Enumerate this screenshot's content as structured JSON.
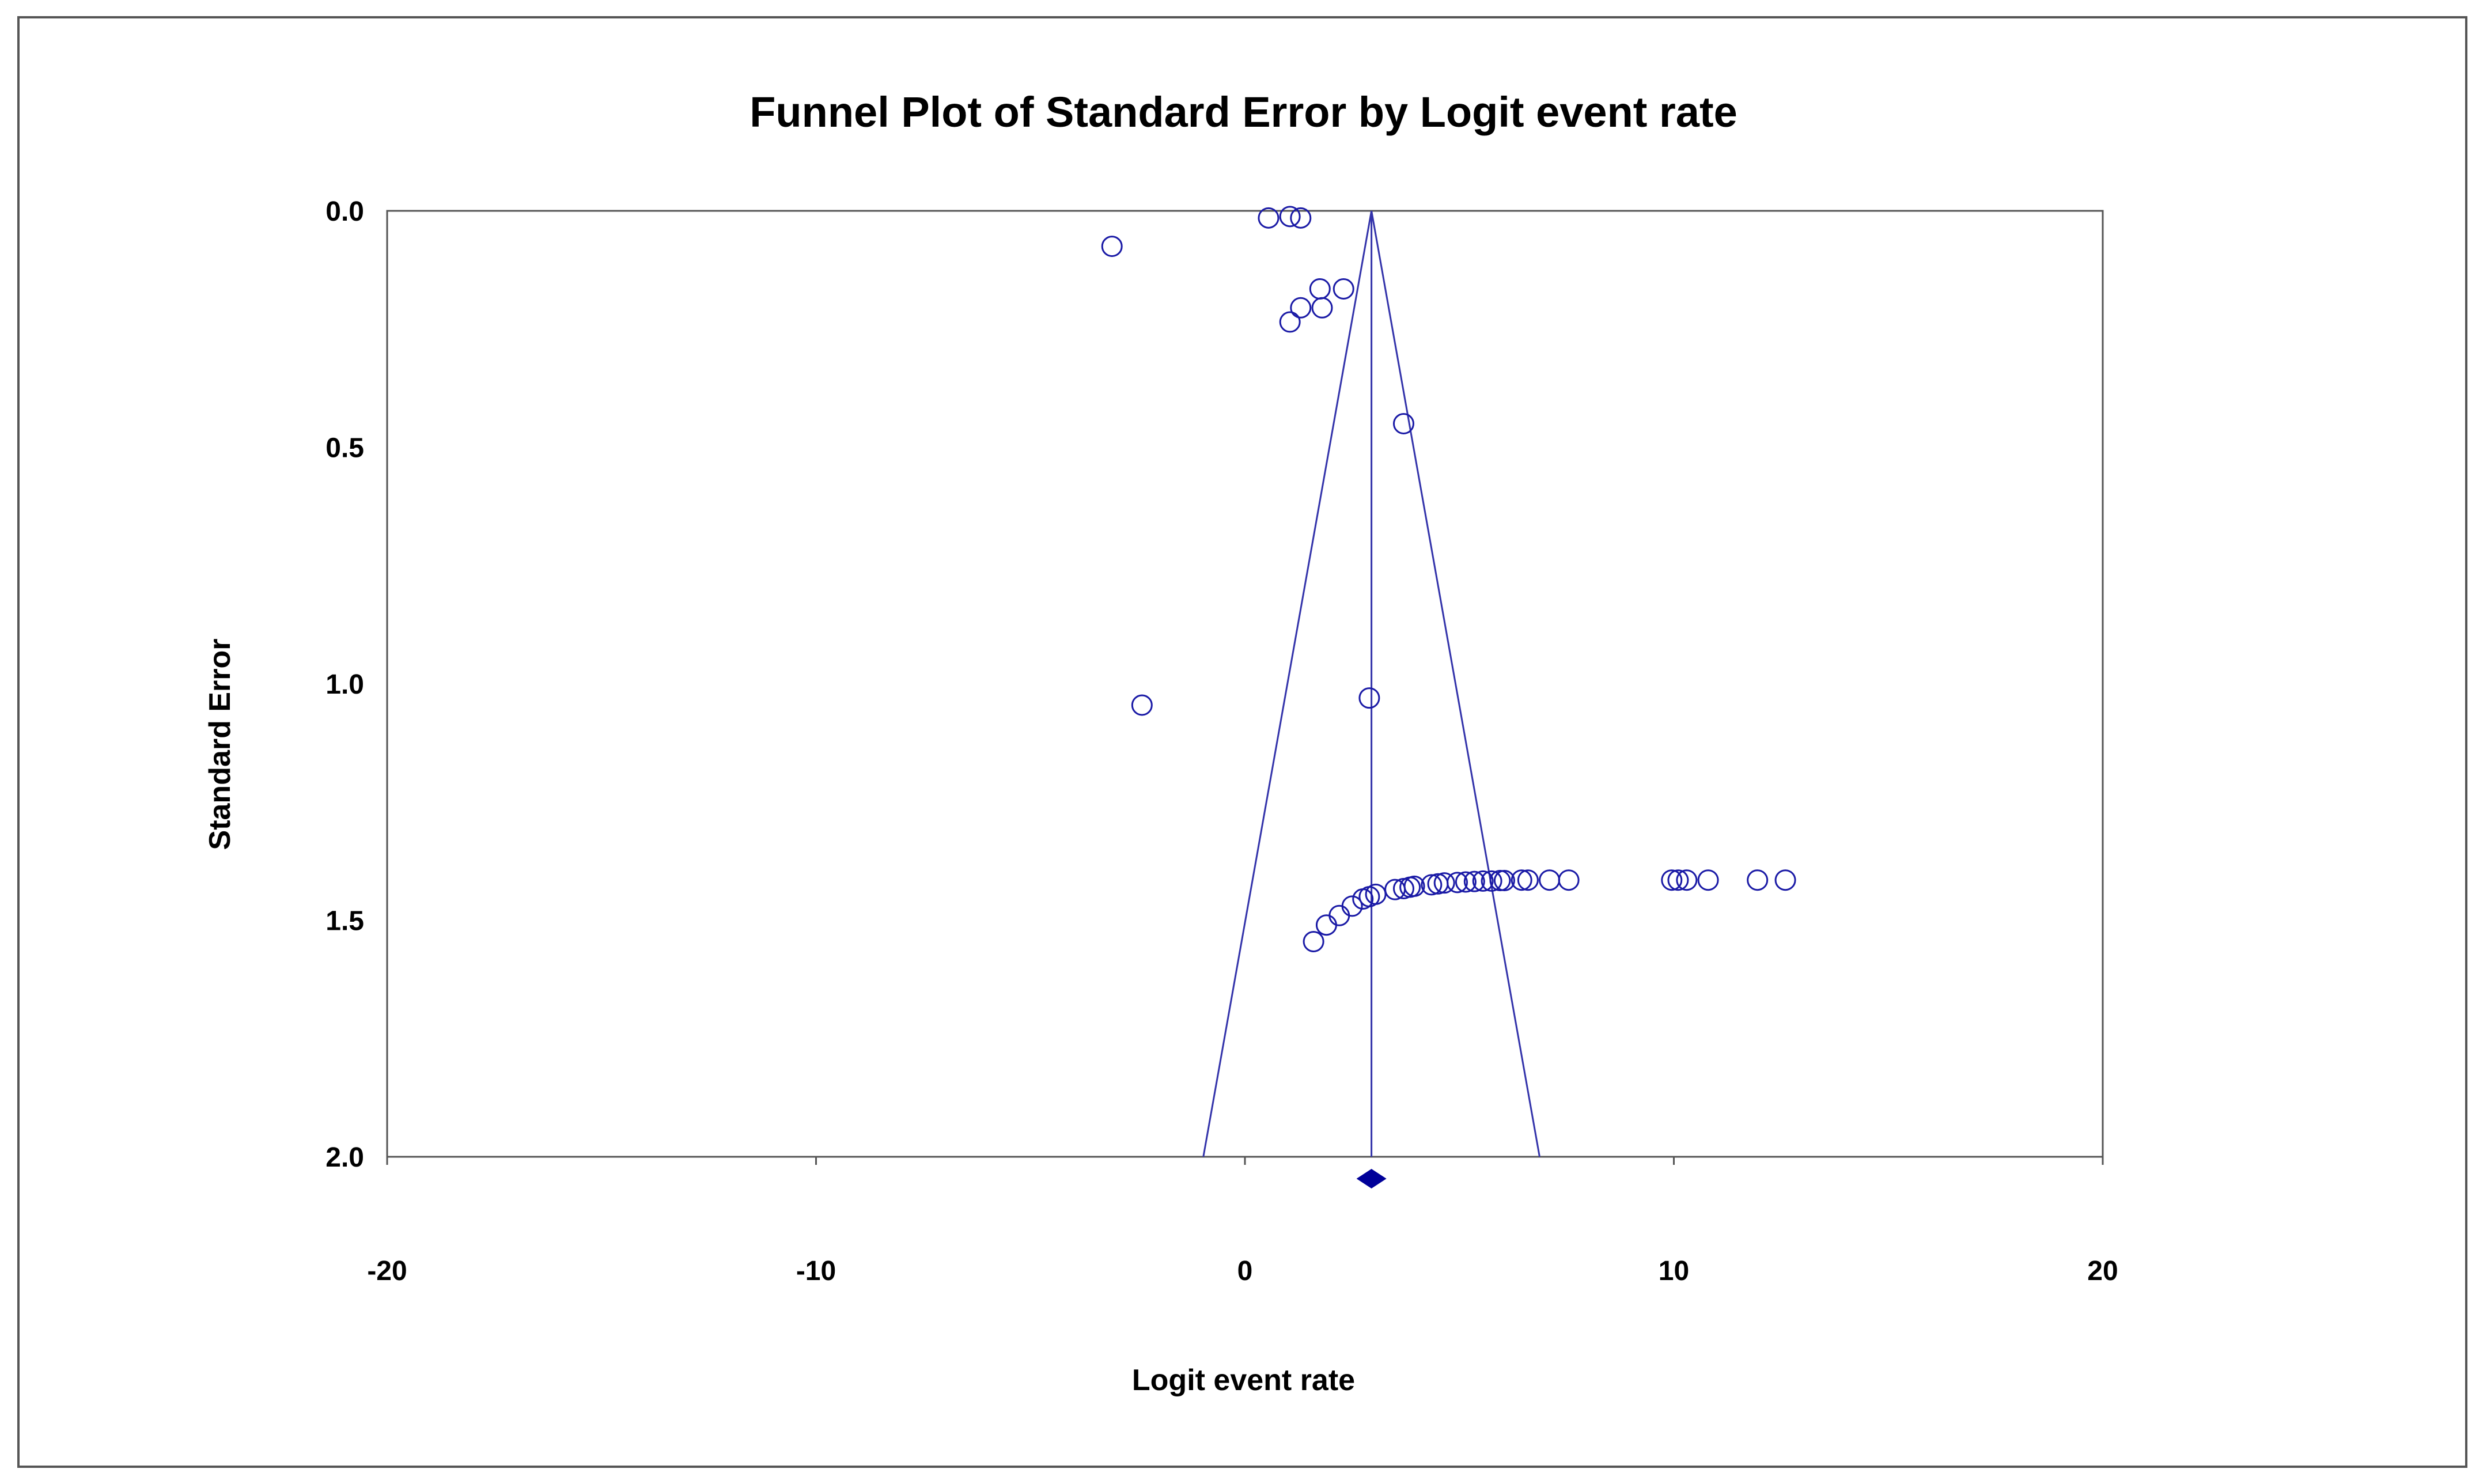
{
  "chart_data": {
    "type": "scatter",
    "title": "Funnel Plot of Standard Error by Logit event rate",
    "xlabel": "Logit event rate",
    "ylabel": "Standard Error",
    "xlim": [
      -20,
      20
    ],
    "ylim": [
      0.0,
      2.0
    ],
    "y_inverted": true,
    "x_ticks": [
      "-20",
      "-10",
      "0",
      "10",
      "20"
    ],
    "y_ticks": [
      "0.0",
      "0.5",
      "1.0",
      "1.5",
      "2.0"
    ],
    "grid": false,
    "colors": {
      "marker": "#1a1aa6",
      "funnel": "#3333aa",
      "summary": "#000099",
      "frame": "#555555"
    },
    "pooled_estimate": 2.95,
    "funnel_at_max_se": [
      -0.97,
      6.87
    ],
    "points": [
      {
        "x": -3.1,
        "y": 0.075
      },
      {
        "x": 0.55,
        "y": 0.015
      },
      {
        "x": 1.05,
        "y": 0.012
      },
      {
        "x": 1.3,
        "y": 0.015
      },
      {
        "x": 1.75,
        "y": 0.165
      },
      {
        "x": 2.3,
        "y": 0.165
      },
      {
        "x": 1.3,
        "y": 0.205
      },
      {
        "x": 1.8,
        "y": 0.205
      },
      {
        "x": 1.05,
        "y": 0.235
      },
      {
        "x": 3.7,
        "y": 0.45
      },
      {
        "x": -2.4,
        "y": 1.045
      },
      {
        "x": 2.9,
        "y": 1.03
      },
      {
        "x": 1.6,
        "y": 1.545
      },
      {
        "x": 1.9,
        "y": 1.51
      },
      {
        "x": 2.2,
        "y": 1.49
      },
      {
        "x": 2.5,
        "y": 1.47
      },
      {
        "x": 2.75,
        "y": 1.455
      },
      {
        "x": 2.9,
        "y": 1.45
      },
      {
        "x": 3.05,
        "y": 1.445
      },
      {
        "x": 3.5,
        "y": 1.435
      },
      {
        "x": 3.7,
        "y": 1.433
      },
      {
        "x": 3.85,
        "y": 1.43
      },
      {
        "x": 3.95,
        "y": 1.428
      },
      {
        "x": 4.35,
        "y": 1.425
      },
      {
        "x": 4.5,
        "y": 1.423
      },
      {
        "x": 4.65,
        "y": 1.421
      },
      {
        "x": 4.95,
        "y": 1.42
      },
      {
        "x": 5.15,
        "y": 1.419
      },
      {
        "x": 5.35,
        "y": 1.418
      },
      {
        "x": 5.55,
        "y": 1.417
      },
      {
        "x": 5.75,
        "y": 1.417
      },
      {
        "x": 5.95,
        "y": 1.416
      },
      {
        "x": 6.05,
        "y": 1.416
      },
      {
        "x": 6.45,
        "y": 1.415
      },
      {
        "x": 6.6,
        "y": 1.415
      },
      {
        "x": 7.1,
        "y": 1.415
      },
      {
        "x": 7.55,
        "y": 1.415
      },
      {
        "x": 9.95,
        "y": 1.415
      },
      {
        "x": 10.1,
        "y": 1.415
      },
      {
        "x": 10.3,
        "y": 1.415
      },
      {
        "x": 10.8,
        "y": 1.415
      },
      {
        "x": 11.95,
        "y": 1.415
      },
      {
        "x": 12.6,
        "y": 1.415
      }
    ]
  }
}
